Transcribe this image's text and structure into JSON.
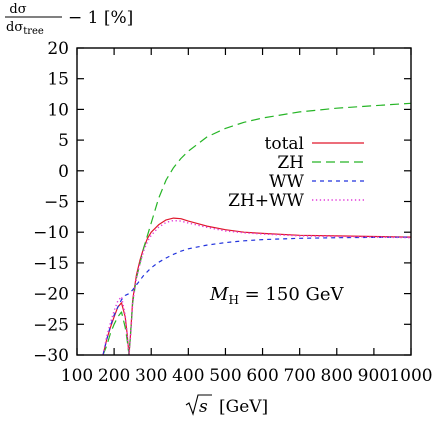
{
  "chart_data": {
    "type": "line",
    "ylabel": "dσ/dσ_tree − 1 [%]",
    "ylabel_parts": {
      "num": "dσ",
      "den_main": "dσ",
      "den_sub": "tree",
      "tail": "− 1 [%]"
    },
    "xlabel": "√s [GeV]",
    "xlabel_parts": {
      "sqrt_arg": "s",
      "unit": "[GeV]"
    },
    "xlim": [
      100,
      1000
    ],
    "ylim": [
      -30,
      20
    ],
    "xticks": [
      100,
      200,
      300,
      400,
      500,
      600,
      700,
      800,
      900,
      1000
    ],
    "yticks": [
      -30,
      -25,
      -20,
      -15,
      -10,
      -5,
      0,
      5,
      10,
      15,
      20
    ],
    "xtick_labels": [
      "100",
      "200",
      "300",
      "400",
      "500",
      "600",
      "700",
      "800",
      "900",
      "1000"
    ],
    "ytick_labels": [
      "−30",
      "−25",
      "−20",
      "−15",
      "−10",
      "−5",
      "0",
      "5",
      "10",
      "15",
      "20"
    ],
    "legend_position": "upper-right",
    "annotation": {
      "main": "M",
      "sub": "H",
      "rest": " = 150 GeV"
    },
    "series": [
      {
        "name": "total",
        "color": "#e0162b",
        "dash": "solid",
        "x": [
          170,
          180,
          190,
          200,
          210,
          220,
          230,
          235,
          240,
          245,
          250,
          260,
          270,
          280,
          290,
          300,
          320,
          340,
          360,
          380,
          400,
          450,
          500,
          550,
          600,
          700,
          800,
          900,
          1000
        ],
        "y": [
          -30,
          -27.5,
          -25.5,
          -23.8,
          -22.2,
          -21.5,
          -23.8,
          -26.5,
          -30,
          -26,
          -21,
          -17,
          -14.5,
          -12.5,
          -11,
          -10,
          -8.8,
          -8,
          -7.7,
          -7.8,
          -8.2,
          -9,
          -9.6,
          -10,
          -10.2,
          -10.5,
          -10.6,
          -10.7,
          -10.8
        ]
      },
      {
        "name": "ZH",
        "color": "#26b526",
        "dash": "long",
        "x": [
          170,
          180,
          190,
          200,
          210,
          220,
          230,
          235,
          240,
          245,
          250,
          260,
          270,
          280,
          290,
          300,
          320,
          340,
          360,
          380,
          400,
          450,
          500,
          550,
          600,
          700,
          800,
          900,
          1000
        ],
        "y": [
          -30,
          -28.5,
          -26.5,
          -25,
          -23.8,
          -23,
          -25.5,
          -27.5,
          -30,
          -26,
          -21.5,
          -17.5,
          -15,
          -12.5,
          -10.5,
          -8.5,
          -4.5,
          -1.5,
          0.5,
          2,
          3.2,
          5.5,
          6.9,
          7.9,
          8.6,
          9.6,
          10.2,
          10.6,
          11.0
        ]
      },
      {
        "name": "WW",
        "color": "#2233dd",
        "dash": "short",
        "x": [
          170,
          180,
          190,
          200,
          210,
          220,
          230,
          240,
          250,
          260,
          280,
          300,
          320,
          340,
          360,
          380,
          400,
          450,
          500,
          550,
          600,
          700,
          800,
          900,
          1000
        ],
        "y": [
          -30,
          -27.5,
          -25.3,
          -23.5,
          -22.2,
          -21,
          -20.3,
          -20,
          -19.4,
          -18.6,
          -17,
          -15.8,
          -14.9,
          -14.2,
          -13.6,
          -13.1,
          -12.7,
          -12.1,
          -11.7,
          -11.4,
          -11.2,
          -11.0,
          -10.9,
          -10.85,
          -10.8
        ]
      },
      {
        "name": "ZH+WW",
        "color": "#e23ad9",
        "dash": "dotted",
        "x": [
          170,
          180,
          190,
          200,
          210,
          220,
          230,
          235,
          240,
          245,
          250,
          260,
          270,
          280,
          290,
          300,
          320,
          340,
          360,
          380,
          400,
          450,
          500,
          550,
          600,
          700,
          800,
          900,
          1000
        ],
        "y": [
          -30,
          -27,
          -24.8,
          -22.8,
          -21.2,
          -20.5,
          -23.5,
          -26.5,
          -30,
          -26.5,
          -21.5,
          -17.5,
          -15,
          -13,
          -11.5,
          -10.5,
          -9.2,
          -8.4,
          -8.1,
          -8.2,
          -8.5,
          -9.2,
          -9.8,
          -10.1,
          -10.3,
          -10.6,
          -10.7,
          -10.8,
          -10.9
        ]
      }
    ]
  }
}
